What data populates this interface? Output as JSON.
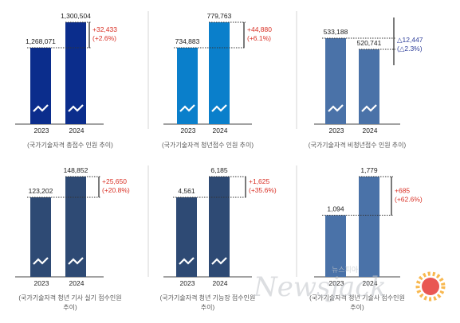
{
  "colors": {
    "navy": "#0b2d8c",
    "blue": "#0a7fcb",
    "steel": "#4a72a8",
    "indigo": "#3a5f98",
    "slate": "#2e4a74",
    "increase": "#d93025",
    "decrease": "#2f3f9a"
  },
  "watermark": {
    "brand": "Newsjack",
    "ko": "뉴스피아"
  },
  "chart_data": [
    {
      "type": "bar",
      "categories": [
        "2023",
        "2024"
      ],
      "values": [
        1268071,
        1300504
      ],
      "value_labels": [
        "1,268,071",
        "1,300,504"
      ],
      "diff_lines": [
        "+32,433",
        "(+2.6%)"
      ],
      "direction": "up",
      "caption_lines": [
        "(국가기술자격 총접수 인원 추이)"
      ],
      "color": "#0b2d8c",
      "broken_axis": true
    },
    {
      "type": "bar",
      "categories": [
        "2023",
        "2024"
      ],
      "values": [
        734883,
        779763
      ],
      "value_labels": [
        "734,883",
        "779,763"
      ],
      "diff_lines": [
        "+44,880",
        "(+6.1%)"
      ],
      "direction": "up",
      "caption_lines": [
        "(국가기술자격 청년접수 인원 추이)"
      ],
      "color": "#0a7fcb",
      "broken_axis": true
    },
    {
      "type": "bar",
      "categories": [
        "2023",
        "2024"
      ],
      "values": [
        533188,
        520741
      ],
      "value_labels": [
        "533,188",
        "520,741"
      ],
      "diff_lines": [
        "△12,447",
        "(△2.3%)"
      ],
      "direction": "down",
      "caption_lines": [
        "(국가기술자격 비청년접수 인원 추이)"
      ],
      "color": "#4a72a8",
      "broken_axis": true
    },
    {
      "type": "bar",
      "categories": [
        "2023",
        "2024"
      ],
      "values": [
        123202,
        148852
      ],
      "value_labels": [
        "123,202",
        "148,852"
      ],
      "diff_lines": [
        "+25,650",
        "(+20.8%)"
      ],
      "direction": "up",
      "caption_lines": [
        "(국가기술자격 청년 기사 실기 접수인원",
        "추이)"
      ],
      "color": "#2e4a74",
      "broken_axis": true
    },
    {
      "type": "bar",
      "categories": [
        "2023",
        "2024"
      ],
      "values": [
        4561,
        6185
      ],
      "value_labels": [
        "4,561",
        "6,185"
      ],
      "diff_lines": [
        "+1,625",
        "(+35.6%)"
      ],
      "direction": "up",
      "caption_lines": [
        "(국가기술자격 청년 기능장 접수인원",
        "추이)"
      ],
      "color": "#2e4a74",
      "broken_axis": true
    },
    {
      "type": "bar",
      "categories": [
        "2023",
        "2024"
      ],
      "values": [
        1094,
        1779
      ],
      "value_labels": [
        "1,094",
        "1,779"
      ],
      "diff_lines": [
        "+685",
        "(+62.6%)"
      ],
      "direction": "up",
      "caption_lines": [
        "(국가기술자격 청년 기술사 접수인원",
        "추이)"
      ],
      "color": "#4a72a8",
      "broken_axis": false
    }
  ]
}
